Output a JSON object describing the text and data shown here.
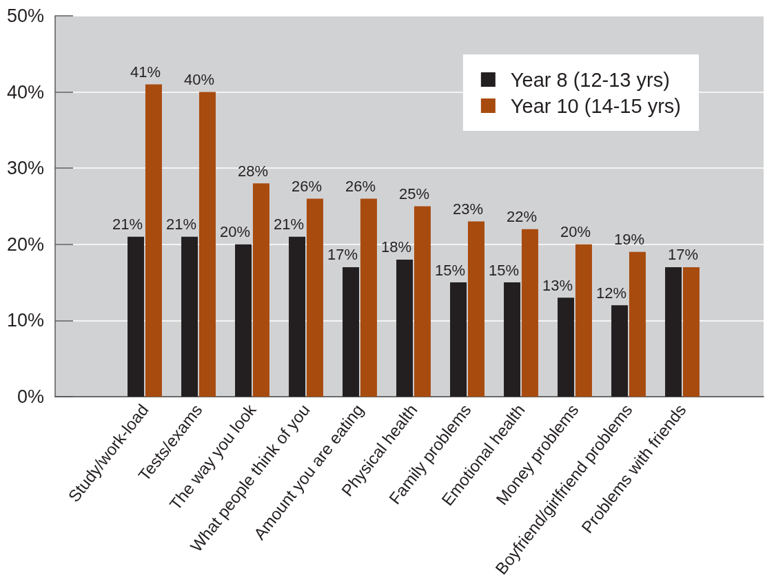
{
  "chart_data": {
    "type": "bar",
    "categories": [
      "Study/work-load",
      "Tests/exams",
      "The way you look",
      "What people think of you",
      "Amount you are eating",
      "Physical health",
      "Family problems",
      "Emotional health",
      "Money problems",
      "Boyfriend/girlfriend problems",
      "Problems with friends"
    ],
    "series": [
      {
        "name": "Year 8 (12-13 yrs)",
        "color": "#231f20",
        "values": [
          21,
          21,
          20,
          21,
          17,
          18,
          15,
          15,
          13,
          12,
          17
        ],
        "value_labels": [
          "21%",
          "21%",
          "20%",
          "21%",
          "17%",
          "18%",
          "15%",
          "15%",
          "13%",
          "12%",
          null
        ]
      },
      {
        "name": "Year 10 (14-15 yrs)",
        "color": "#a84b0f",
        "values": [
          41,
          40,
          28,
          26,
          26,
          25,
          23,
          22,
          20,
          19,
          17
        ],
        "value_labels": [
          "41%",
          "40%",
          "28%",
          "26%",
          "26%",
          "25%",
          "23%",
          "22%",
          "20%",
          "19%",
          "17%"
        ]
      }
    ],
    "ylim": [
      0,
      50
    ],
    "yticks": [
      {
        "value": 0,
        "label": "0%"
      },
      {
        "value": 10,
        "label": "10%"
      },
      {
        "value": 20,
        "label": "20%"
      },
      {
        "value": 30,
        "label": "30%"
      },
      {
        "value": 40,
        "label": "40%"
      },
      {
        "value": 50,
        "label": "50%"
      }
    ],
    "grid": "y",
    "legend": "top right"
  }
}
